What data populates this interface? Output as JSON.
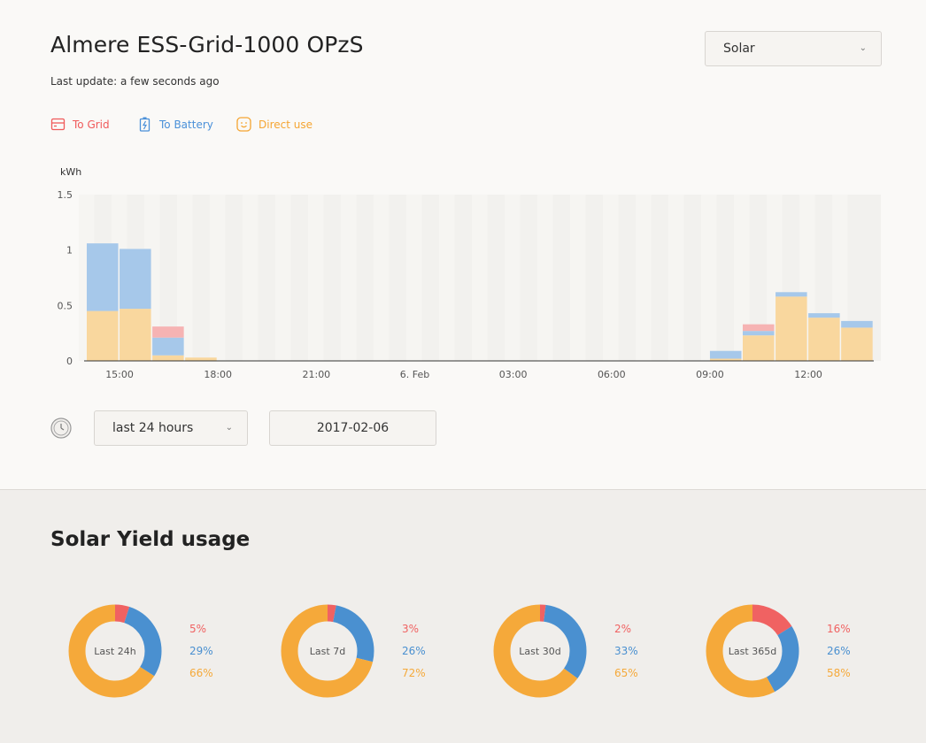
{
  "header": {
    "title": "Almere ESS-Grid-1000 OPzS",
    "last_update": "Last update: a few seconds ago"
  },
  "source_select": {
    "value": "Solar"
  },
  "legend": [
    {
      "label": "To Grid",
      "color": "#f05a5a",
      "icon": "grid-icon"
    },
    {
      "label": "To Battery",
      "color": "#4a90d9",
      "icon": "battery-icon"
    },
    {
      "label": "Direct use",
      "color": "#f5a532",
      "icon": "smiley-icon"
    }
  ],
  "controls": {
    "range": "last 24 hours",
    "date": "2017-02-06"
  },
  "chart_data": {
    "type": "bar",
    "stacked": true,
    "ylabel": "kWh",
    "ylim": [
      0,
      1.5
    ],
    "yticks": [
      "0",
      "0.5",
      "1",
      "1.5"
    ],
    "xticks": [
      "15:00",
      "18:00",
      "21:00",
      "6. Feb",
      "03:00",
      "06:00",
      "09:00",
      "12:00"
    ],
    "colors": {
      "direct": "#f9d79e",
      "battery": "#a6c8ea",
      "grid": "#f6b3b3"
    },
    "bars": [
      {
        "hour": "14:00",
        "direct": 0.45,
        "battery": 0.61,
        "grid": 0
      },
      {
        "hour": "15:00",
        "direct": 0.47,
        "battery": 0.54,
        "grid": 0
      },
      {
        "hour": "16:00",
        "direct": 0.05,
        "battery": 0.16,
        "grid": 0.1
      },
      {
        "hour": "17:00",
        "direct": 0.03,
        "battery": 0,
        "grid": 0
      },
      {
        "hour": "09:00",
        "direct": 0.02,
        "battery": 0.07,
        "grid": 0
      },
      {
        "hour": "10:00",
        "direct": 0.23,
        "battery": 0.04,
        "grid": 0.06
      },
      {
        "hour": "11:00",
        "direct": 0.58,
        "battery": 0.04,
        "grid": 0
      },
      {
        "hour": "12:00",
        "direct": 0.39,
        "battery": 0.04,
        "grid": 0
      },
      {
        "hour": "13:00",
        "direct": 0.3,
        "battery": 0.06,
        "grid": 0
      }
    ]
  },
  "usage": {
    "title": "Solar Yield usage",
    "colors": {
      "grid": "#f06262",
      "battery": "#4a90d0",
      "direct": "#f5a93a"
    },
    "periods": [
      {
        "label": "Last 24h",
        "grid": 5,
        "battery": 29,
        "direct": 66,
        "grid_text": "5%",
        "battery_text": "29%",
        "direct_text": "66%"
      },
      {
        "label": "Last 7d",
        "grid": 3,
        "battery": 26,
        "direct": 72,
        "grid_text": "3%",
        "battery_text": "26%",
        "direct_text": "72%"
      },
      {
        "label": "Last 30d",
        "grid": 2,
        "battery": 33,
        "direct": 65,
        "grid_text": "2%",
        "battery_text": "33%",
        "direct_text": "65%"
      },
      {
        "label": "Last 365d",
        "grid": 16,
        "battery": 26,
        "direct": 58,
        "grid_text": "16%",
        "battery_text": "26%",
        "direct_text": "58%"
      }
    ]
  }
}
